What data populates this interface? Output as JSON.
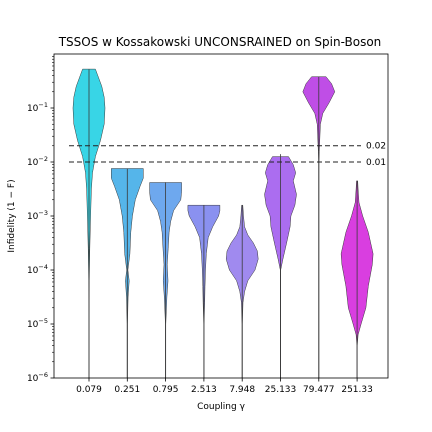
{
  "chart_data": {
    "type": "violin",
    "title": "TSSOS w Kossakowski UNCONSRAINED on Spin-Boson",
    "xlabel": "Coupling γ",
    "ylabel": "Infidelity (1 − F)",
    "yscale": "log",
    "ylim": [
      1e-06,
      1.0
    ],
    "yticks": [
      {
        "base": "10",
        "exp": "−6",
        "value": 1e-06
      },
      {
        "base": "10",
        "exp": "−5",
        "value": 1e-05
      },
      {
        "base": "10",
        "exp": "−4",
        "value": 0.0001
      },
      {
        "base": "10",
        "exp": "−3",
        "value": 0.001
      },
      {
        "base": "10",
        "exp": "−2",
        "value": 0.01
      },
      {
        "base": "10",
        "exp": "−1",
        "value": 0.1
      }
    ],
    "categories": [
      "0.079",
      "0.251",
      "0.795",
      "2.513",
      "7.948",
      "25.133",
      "79.477",
      "251.33"
    ],
    "violins": [
      {
        "color": "#38d5e6",
        "min": 1e-06,
        "max": 0.52,
        "profile": [
          [
            -6,
            0.01
          ],
          [
            -5,
            0.01
          ],
          [
            -4.2,
            0.02
          ],
          [
            -3.6,
            0.05
          ],
          [
            -3.0,
            0.1
          ],
          [
            -2.5,
            0.15
          ],
          [
            -2.2,
            0.22
          ],
          [
            -1.9,
            0.4
          ],
          [
            -1.6,
            0.72
          ],
          [
            -1.3,
            0.95
          ],
          [
            -1.0,
            1.0
          ],
          [
            -0.8,
            0.95
          ],
          [
            -0.6,
            0.8
          ],
          [
            -0.4,
            0.55
          ],
          [
            -0.28,
            0.4
          ]
        ]
      },
      {
        "color": "#55b5ea",
        "min": 1e-06,
        "max": 0.0075,
        "profile": [
          [
            -6,
            0.01
          ],
          [
            -5,
            0.01
          ],
          [
            -4.5,
            0.05
          ],
          [
            -4.2,
            0.12
          ],
          [
            -4.0,
            0.04
          ],
          [
            -3.7,
            0.16
          ],
          [
            -3.3,
            0.22
          ],
          [
            -3.0,
            0.32
          ],
          [
            -2.7,
            0.5
          ],
          [
            -2.45,
            0.8
          ],
          [
            -2.3,
            1.0
          ],
          [
            -2.12,
            1.0
          ]
        ]
      },
      {
        "color": "#6ea8ee",
        "min": 1e-06,
        "max": 0.0042,
        "profile": [
          [
            -6,
            0.01
          ],
          [
            -5,
            0.01
          ],
          [
            -4.5,
            0.08
          ],
          [
            -4.2,
            0.15
          ],
          [
            -3.9,
            0.1
          ],
          [
            -3.6,
            0.16
          ],
          [
            -3.3,
            0.22
          ],
          [
            -3.1,
            0.32
          ],
          [
            -2.9,
            0.5
          ],
          [
            -2.7,
            0.95
          ],
          [
            -2.55,
            1.0
          ],
          [
            -2.38,
            1.0
          ]
        ]
      },
      {
        "color": "#8a91f0",
        "min": 1e-06,
        "max": 0.0016,
        "profile": [
          [
            -6,
            0.01
          ],
          [
            -5,
            0.01
          ],
          [
            -4.6,
            0.05
          ],
          [
            -4.3,
            0.07
          ],
          [
            -4.0,
            0.1
          ],
          [
            -3.7,
            0.15
          ],
          [
            -3.4,
            0.27
          ],
          [
            -3.2,
            0.55
          ],
          [
            -3.0,
            0.92
          ],
          [
            -2.9,
            1.0
          ],
          [
            -2.8,
            1.0
          ]
        ]
      },
      {
        "color": "#a08aef",
        "min": 1e-06,
        "max": 0.0016,
        "profile": [
          [
            -6,
            0.01
          ],
          [
            -5,
            0.01
          ],
          [
            -4.6,
            0.05
          ],
          [
            -4.4,
            0.15
          ],
          [
            -4.2,
            0.35
          ],
          [
            -4.0,
            0.8
          ],
          [
            -3.8,
            1.0
          ],
          [
            -3.65,
            0.95
          ],
          [
            -3.5,
            0.7
          ],
          [
            -3.35,
            0.35
          ],
          [
            -3.2,
            0.15
          ],
          [
            -3.0,
            0.08
          ],
          [
            -2.8,
            0.04
          ]
        ]
      },
      {
        "color": "#ab6df0",
        "min": 1e-06,
        "max": 0.014,
        "profile": [
          [
            -6,
            0.01
          ],
          [
            -5,
            0.01
          ],
          [
            -4.0,
            0.01
          ],
          [
            -3.8,
            0.15
          ],
          [
            -3.5,
            0.38
          ],
          [
            -3.2,
            0.6
          ],
          [
            -3.0,
            0.65
          ],
          [
            -2.8,
            0.9
          ],
          [
            -2.6,
            1.0
          ],
          [
            -2.35,
            0.8
          ],
          [
            -2.2,
            0.95
          ],
          [
            -2.05,
            0.8
          ],
          [
            -1.9,
            0.5
          ]
        ]
      },
      {
        "color": "#bf4ee6",
        "min": 1e-06,
        "max": 0.38,
        "profile": [
          [
            -6,
            0.01
          ],
          [
            -5,
            0.01
          ],
          [
            -2.0,
            0.01
          ],
          [
            -1.8,
            0.03
          ],
          [
            -1.3,
            0.1
          ],
          [
            -1.1,
            0.25
          ],
          [
            -0.9,
            0.65
          ],
          [
            -0.7,
            1.0
          ],
          [
            -0.55,
            0.8
          ],
          [
            -0.42,
            0.45
          ]
        ]
      },
      {
        "color": "#d93ee0",
        "min": 1e-06,
        "max": 0.0045,
        "profile": [
          [
            -6,
            0.01
          ],
          [
            -5.4,
            0.01
          ],
          [
            -5.2,
            0.06
          ],
          [
            -5.0,
            0.25
          ],
          [
            -4.7,
            0.55
          ],
          [
            -4.3,
            0.7
          ],
          [
            -3.9,
            0.95
          ],
          [
            -3.7,
            1.0
          ],
          [
            -3.3,
            0.7
          ],
          [
            -3.0,
            0.35
          ],
          [
            -2.75,
            0.12
          ],
          [
            -2.5,
            0.06
          ],
          [
            -2.35,
            0.04
          ]
        ]
      }
    ],
    "reference_lines": [
      {
        "value": 0.02,
        "label": "0.02"
      },
      {
        "value": 0.01,
        "label": "0.01"
      }
    ]
  }
}
